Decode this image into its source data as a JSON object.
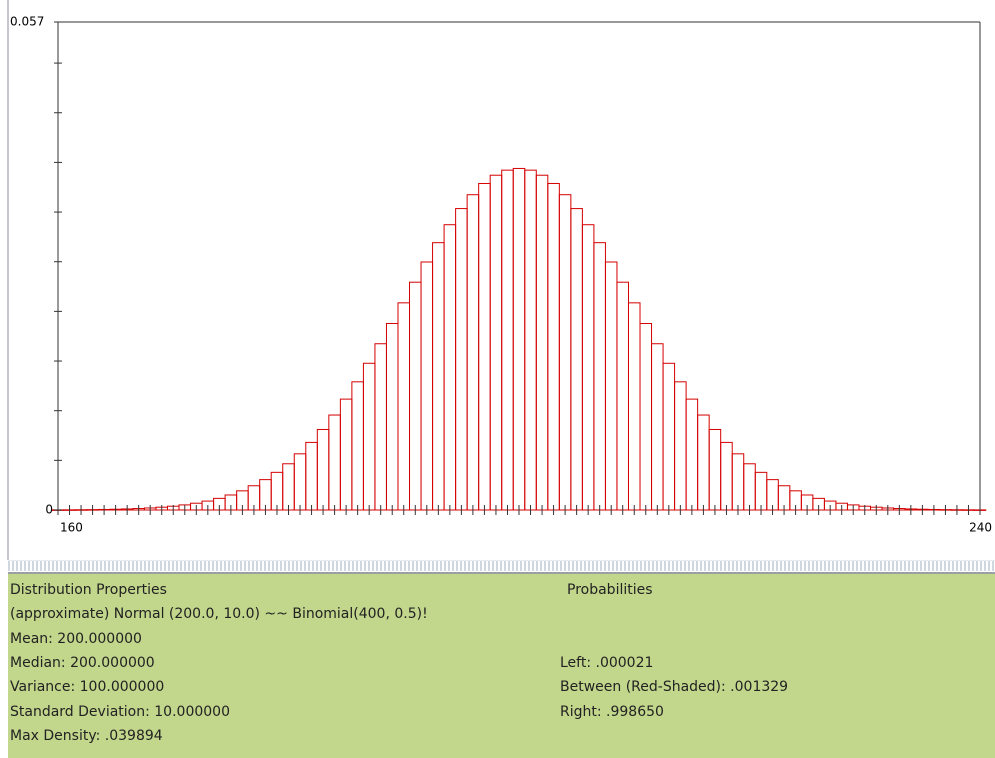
{
  "chart_data": {
    "type": "histogram",
    "x": [
      160,
      161,
      162,
      163,
      164,
      165,
      166,
      167,
      168,
      169,
      170,
      171,
      172,
      173,
      174,
      175,
      176,
      177,
      178,
      179,
      180,
      181,
      182,
      183,
      184,
      185,
      186,
      187,
      188,
      189,
      190,
      191,
      192,
      193,
      194,
      195,
      196,
      197,
      198,
      199,
      200,
      201,
      202,
      203,
      204,
      205,
      206,
      207,
      208,
      209,
      210,
      211,
      212,
      213,
      214,
      215,
      216,
      217,
      218,
      219,
      220,
      221,
      222,
      223,
      224,
      225,
      226,
      227,
      228,
      229,
      230,
      231,
      232,
      233,
      234,
      235,
      236,
      237,
      238,
      239,
      240
    ],
    "values": [
      1.3e-05,
      2e-05,
      2.9e-05,
      4.2e-05,
      6.1e-05,
      8.7e-05,
      0.000123,
      0.000172,
      0.000238,
      0.000327,
      0.000443,
      0.000595,
      0.000792,
      0.001042,
      0.001358,
      0.001753,
      0.002239,
      0.002833,
      0.003547,
      0.004398,
      0.005399,
      0.006562,
      0.007895,
      0.009405,
      0.011092,
      0.012952,
      0.014973,
      0.017137,
      0.019419,
      0.021785,
      0.024197,
      0.026609,
      0.028969,
      0.031225,
      0.033322,
      0.035207,
      0.036827,
      0.038139,
      0.039104,
      0.039695,
      0.039894,
      0.039695,
      0.039104,
      0.038139,
      0.036827,
      0.035207,
      0.033322,
      0.031225,
      0.028969,
      0.026609,
      0.024197,
      0.021785,
      0.019419,
      0.017137,
      0.014973,
      0.012952,
      0.011092,
      0.009405,
      0.007895,
      0.006562,
      0.005399,
      0.004398,
      0.003547,
      0.002833,
      0.002239,
      0.001753,
      0.001358,
      0.001042,
      0.000792,
      0.000595,
      0.000443,
      0.000327,
      0.000238,
      0.000172,
      0.000123,
      8.7e-05,
      6.1e-05,
      4.2e-05,
      2.9e-05,
      2e-05,
      1.3e-05
    ],
    "color": "#d40000",
    "xlim": [
      160,
      240
    ],
    "xticks": [
      160,
      240
    ],
    "x_minor_ticks": [
      161,
      162,
      163,
      164,
      165,
      166,
      167,
      168,
      169,
      170,
      171,
      172,
      173,
      174,
      175,
      176,
      177,
      178,
      179,
      180,
      181,
      182,
      183,
      184,
      185,
      186,
      187,
      188,
      189,
      190,
      191,
      192,
      193,
      194,
      195,
      196,
      197,
      198,
      199,
      200,
      201,
      202,
      203,
      204,
      205,
      206,
      207,
      208,
      209,
      210,
      211,
      212,
      213,
      214,
      215,
      216,
      217,
      218,
      219,
      220,
      221,
      222,
      223,
      224,
      225,
      226,
      227,
      228,
      229,
      230,
      231,
      232,
      233,
      234,
      235,
      236,
      237,
      238,
      239
    ],
    "ylim": [
      0,
      0.057
    ],
    "yticks": [
      0,
      0.057
    ],
    "y_minor_ticks": [
      0.0058,
      0.0116,
      0.0174,
      0.0232,
      0.029,
      0.0348,
      0.0406,
      0.0464,
      0.0522
    ]
  },
  "panel": {
    "left_title": "Distribution Properties",
    "left_lines": [
      "(approximate) Normal (200.0, 10.0) ~~ Binomial(400, 0.5)!",
      "Mean: 200.000000",
      "Median: 200.000000",
      "Variance: 100.000000",
      "Standard Deviation: 10.000000",
      "Max Density: .039894"
    ],
    "right_title": "Probabilities",
    "right_lines": [
      "Left: .000021",
      "Between (Red-Shaded): .001329",
      "Right: .998650"
    ]
  }
}
